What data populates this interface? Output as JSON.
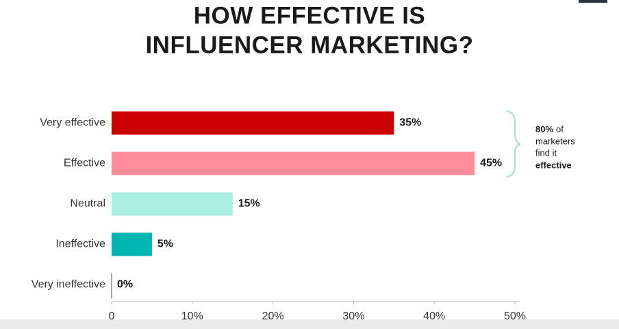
{
  "chart_data": {
    "type": "bar",
    "orientation": "horizontal",
    "title": [
      "HOW EFFECTIVE IS",
      "INFLUENCER MARKETING?"
    ],
    "categories": [
      "Very effective",
      "Effective",
      "Neutral",
      "Ineffective",
      "Very ineffective"
    ],
    "values": [
      35,
      45,
      15,
      5,
      0
    ],
    "value_labels": [
      "35%",
      "45%",
      "15%",
      "5%",
      "0%"
    ],
    "colors": [
      "#cc0000",
      "#ff8c9a",
      "#aaf0e2",
      "#00b6b2",
      "#888888"
    ],
    "xlim": [
      0,
      50
    ],
    "xticks": [
      0,
      {
        "value": 10,
        "label": "10%"
      },
      {
        "value": 20,
        "label": "20%"
      },
      {
        "value": 30,
        "label": "30%"
      },
      {
        "value": 40,
        "label": "40%"
      },
      {
        "value": 50,
        "label": "50%"
      }
    ],
    "annotation": {
      "lines": [
        [
          "80%",
          "of"
        ],
        [
          "marketers"
        ],
        [
          "find it"
        ],
        [
          "effective"
        ]
      ]
    }
  }
}
